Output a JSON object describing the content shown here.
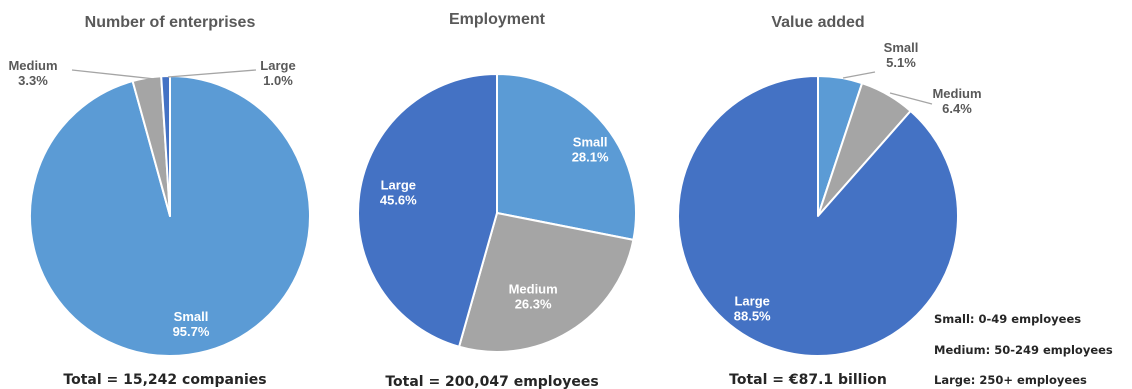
{
  "chart_data": [
    {
      "type": "pie",
      "title": "Number of enterprises",
      "total": "Total = 15,242 companies",
      "slices": [
        {
          "name": "Small",
          "label": "95.7%",
          "value": 95.7,
          "color": "#5b9bd5"
        },
        {
          "name": "Medium",
          "label": "3.3%",
          "value": 3.3,
          "color": "#a5a5a5"
        },
        {
          "name": "Large",
          "label": "1.0%",
          "value": 1.0,
          "color": "#4472c4"
        }
      ]
    },
    {
      "type": "pie",
      "title": "Employment",
      "total": "Total = 200,047 employees",
      "slices": [
        {
          "name": "Small",
          "label": "28.1%",
          "value": 28.1,
          "color": "#5b9bd5"
        },
        {
          "name": "Medium",
          "label": "26.3%",
          "value": 26.3,
          "color": "#a5a5a5"
        },
        {
          "name": "Large",
          "label": "45.6%",
          "value": 45.6,
          "color": "#4472c4"
        }
      ]
    },
    {
      "type": "pie",
      "title": "Value added",
      "total": "Total = €87.1 billion",
      "slices": [
        {
          "name": "Small",
          "label": "5.1%",
          "value": 5.1,
          "color": "#5b9bd5"
        },
        {
          "name": "Medium",
          "label": "6.4%",
          "value": 6.4,
          "color": "#a5a5a5"
        },
        {
          "name": "Large",
          "label": "88.5%",
          "value": 88.5,
          "color": "#4472c4"
        }
      ]
    }
  ],
  "legend_notes": [
    "Small: 0-49 employees",
    "Medium:  50-249 employees",
    "Large: 250+ employees"
  ]
}
